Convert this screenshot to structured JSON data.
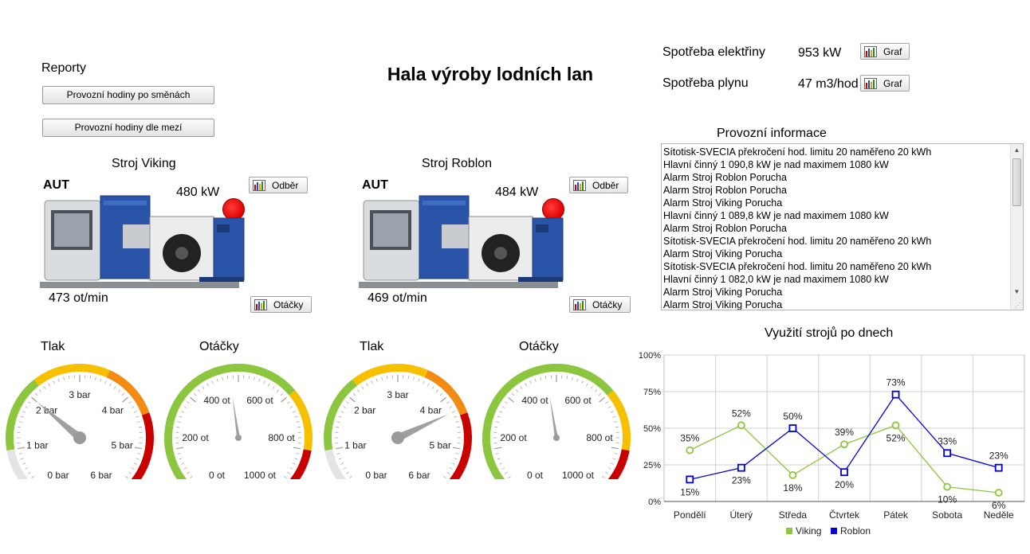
{
  "header": {
    "title": "Hala výroby lodních lan"
  },
  "reports": {
    "title": "Reporty",
    "btn_shifts": "Provozní hodiny po směnách",
    "btn_limits": "Provozní hodiny dle mezí"
  },
  "consumption": {
    "electricity_label": "Spotřeba elektřiny",
    "electricity_value": "953 kW",
    "gas_label": "Spotřeba plynu",
    "gas_value": "47 m3/hod",
    "graph_btn": "Graf"
  },
  "machines": [
    {
      "title": "Stroj Viking",
      "mode": "AUT",
      "power": "480 kW",
      "rpm": "473 ot/min",
      "btn_odber": "Odběr",
      "btn_otacky": "Otáčky"
    },
    {
      "title": "Stroj Roblon",
      "mode": "AUT",
      "power": "484 kW",
      "rpm": "469 ot/min",
      "btn_odber": "Odběr",
      "btn_otacky": "Otáčky"
    }
  ],
  "colors": {
    "alarm": "#e00000",
    "viking": "#8cc63f",
    "roblon": "#0000dd",
    "gauge_green": "#8cc63f",
    "gauge_yellow": "#f6c000",
    "gauge_orange": "#f38a12",
    "gauge_red": "#c90000"
  },
  "gauges": [
    {
      "title": "Tlak",
      "labels": [
        "0 bar",
        "1 bar",
        "2 bar",
        "3 bar",
        "4 bar",
        "5 bar",
        "6 bar"
      ],
      "min": 0,
      "max": 6,
      "value": 2.0
    },
    {
      "title": "Otáčky",
      "labels": [
        "0 ot",
        "200 ot",
        "400 ot",
        "600 ot",
        "800 ot",
        "1000 ot"
      ],
      "min": 0,
      "max": 1000,
      "value": 473
    },
    {
      "title": "Tlak",
      "labels": [
        "0 bar",
        "1 bar",
        "2 bar",
        "3 bar",
        "4 bar",
        "5 bar",
        "6 bar"
      ],
      "min": 0,
      "max": 6,
      "value": 4.3
    },
    {
      "title": "Otáčky",
      "labels": [
        "0 ot",
        "200 ot",
        "400 ot",
        "600 ot",
        "800 ot",
        "1000 ot"
      ],
      "min": 0,
      "max": 1000,
      "value": 469
    }
  ],
  "info": {
    "title": "Provozní informace",
    "lines": [
      "Sítotisk-SVECIA překročení hod. limitu 20 naměřeno 20 kWh",
      "Hlavní činný 1 090,8 kW je nad maximem 1080 kW",
      "Alarm Stroj Roblon Porucha",
      "Alarm Stroj Roblon Porucha",
      "Alarm Stroj Viking Porucha",
      "Hlavní činný 1 089,8 kW je nad maximem 1080 kW",
      "Alarm Stroj Roblon Porucha",
      "Sítotisk-SVECIA překročení hod. limitu 20 naměřeno 20 kWh",
      "Alarm Stroj Viking Porucha",
      "Sítotisk-SVECIA překročení hod. limitu 20 naměřeno 20 kWh",
      "Hlavní činný 1 082,0 kW je nad maximem 1080 kW",
      "Alarm Stroj Viking Porucha",
      "Alarm Stroj Viking Porucha"
    ]
  },
  "chart_data": {
    "type": "line",
    "title": "Využití strojů po dnech",
    "categories": [
      "Pondělí",
      "Úterý",
      "Středa",
      "Čtvrtek",
      "Pátek",
      "Sobota",
      "Neděle"
    ],
    "yticks": [
      "0%",
      "25%",
      "50%",
      "75%",
      "100%"
    ],
    "ylim": [
      0,
      100
    ],
    "grid": true,
    "legend_position": "bottom",
    "series": [
      {
        "name": "Viking",
        "values": [
          35,
          52,
          18,
          39,
          52,
          10,
          6
        ],
        "labels": [
          "35%",
          "52%",
          "18%",
          "39%",
          "52%",
          "10%",
          "6%"
        ]
      },
      {
        "name": "Roblon",
        "values": [
          15,
          23,
          50,
          20,
          73,
          33,
          23
        ],
        "labels": [
          "15%",
          "23%",
          "50%",
          "20%",
          "73%",
          "33%",
          "23%"
        ]
      }
    ]
  }
}
